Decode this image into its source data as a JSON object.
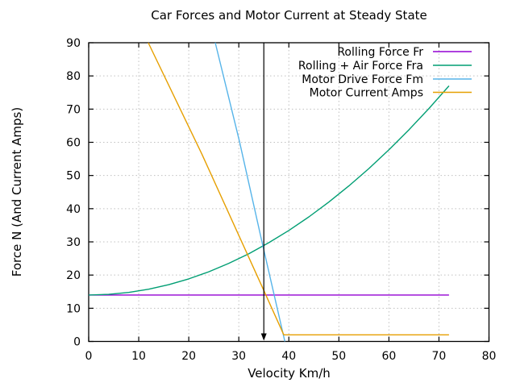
{
  "chart_data": {
    "type": "line",
    "title": "Car Forces and Motor Current at Steady State",
    "xlabel": "Velocity Km/h",
    "ylabel": "Force N (And Current Amps)",
    "xlim": [
      0,
      80
    ],
    "ylim": [
      0,
      90
    ],
    "xticks": [
      0,
      10,
      20,
      30,
      40,
      50,
      60,
      70,
      80
    ],
    "yticks": [
      0,
      10,
      20,
      30,
      40,
      50,
      60,
      70,
      80,
      90
    ],
    "grid": true,
    "grid_color": "#c0c0c0",
    "axis_color": "#000000",
    "background_color": "#ffffff",
    "legend_position": "top-right-inside",
    "series": [
      {
        "name": "Rolling Force Fr",
        "slug": "rolling-force-fr",
        "color": "#9400d3",
        "points": [
          [
            0,
            14
          ],
          [
            72,
            14
          ]
        ]
      },
      {
        "name": "Rolling + Air Force Fra",
        "slug": "rolling-air-force-fra",
        "color": "#009e73",
        "points": [
          [
            0,
            14.0
          ],
          [
            4,
            14.19
          ],
          [
            8,
            14.78
          ],
          [
            12,
            15.75
          ],
          [
            16,
            17.11
          ],
          [
            20,
            18.86
          ],
          [
            24,
            21.0
          ],
          [
            28,
            23.53
          ],
          [
            32,
            26.44
          ],
          [
            36,
            29.75
          ],
          [
            40,
            33.44
          ],
          [
            44,
            37.53
          ],
          [
            48,
            42.0
          ],
          [
            52,
            46.86
          ],
          [
            56,
            52.11
          ],
          [
            60,
            57.75
          ],
          [
            64,
            63.77
          ],
          [
            68,
            70.19
          ],
          [
            72,
            77.0
          ]
        ]
      },
      {
        "name": "Motor Drive Force Fm",
        "slug": "motor-drive-force-fm",
        "color": "#56b4e9",
        "points": [
          [
            25.3,
            90
          ],
          [
            30.1,
            60.5
          ],
          [
            34.7,
            29.5
          ],
          [
            39.2,
            0
          ]
        ]
      },
      {
        "name": "Motor Current Amps",
        "slug": "motor-current-amps",
        "color": "#e69f00",
        "points": [
          [
            11.9,
            90
          ],
          [
            22.6,
            56.5
          ],
          [
            34.8,
            16
          ],
          [
            39,
            2
          ],
          [
            72,
            2
          ]
        ]
      }
    ],
    "annotations": [
      {
        "type": "arrow",
        "label": "steady-state-velocity-marker",
        "x": 35,
        "from_y": 90,
        "to_y": 0,
        "color": "#000000"
      }
    ]
  }
}
